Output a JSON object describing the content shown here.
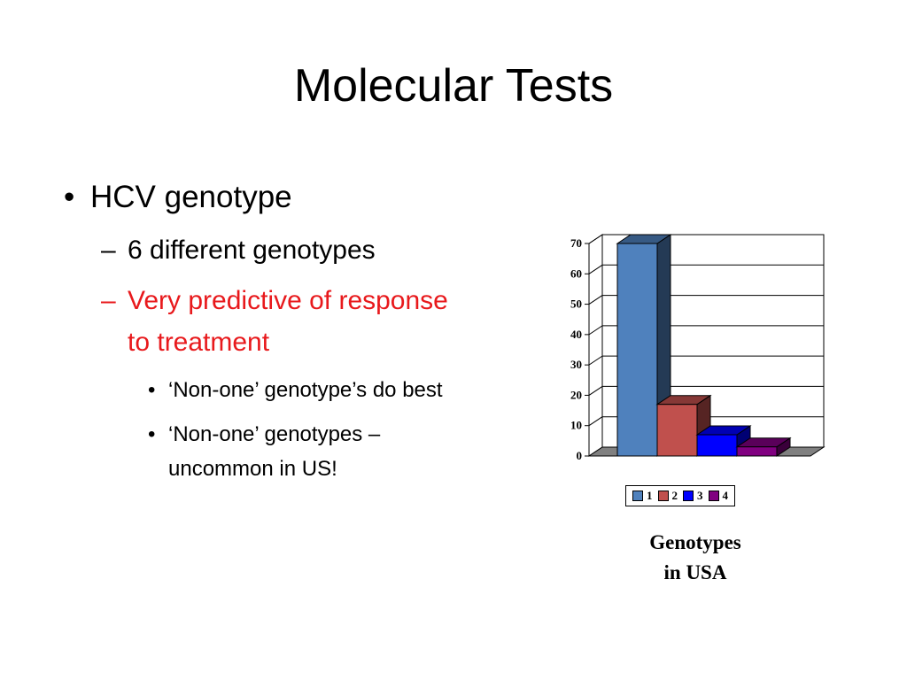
{
  "slide": {
    "title": "Molecular Tests",
    "bullets": {
      "level1": "HCV genotype",
      "level2_a": "6 different genotypes",
      "level2_b_line1": "Very predictive of response",
      "level2_b_line2": "to treatment",
      "level3_a": "‘Non-one’ genotype’s do best",
      "level3_b_line1": "‘Non-one’ genotypes –",
      "level3_b_line2": "uncommon in US!"
    },
    "markers": {
      "bullet": "•",
      "dash": "–"
    },
    "colors": {
      "emphasis": "#e8191c"
    }
  },
  "chart_data": {
    "type": "bar",
    "categories": [
      "1",
      "2",
      "3",
      "4"
    ],
    "values": [
      70,
      17,
      7,
      3
    ],
    "colors": [
      "#4f81bd",
      "#c0504d",
      "#0000ff",
      "#800080"
    ],
    "ylim": [
      0,
      70
    ],
    "yticks": [
      "0",
      "10",
      "20",
      "30",
      "40",
      "50",
      "60",
      "70"
    ],
    "grid": true,
    "style": "3d",
    "legend_position": "bottom",
    "caption_line1": "Genotypes",
    "caption_line2": "in USA"
  }
}
